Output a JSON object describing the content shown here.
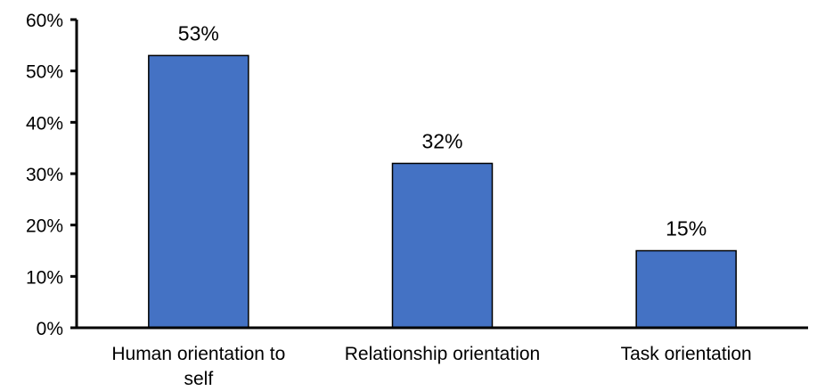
{
  "chart_data": {
    "type": "bar",
    "categories": [
      [
        "Human orientation to",
        "self"
      ],
      [
        "Relationship orientation"
      ],
      [
        "Task orientation"
      ]
    ],
    "values": [
      53,
      32,
      15
    ],
    "data_labels": [
      "53%",
      "32%",
      "15%"
    ],
    "ylim": [
      0,
      60
    ],
    "yticks": [
      0,
      10,
      20,
      30,
      40,
      50,
      60
    ],
    "ytick_labels": [
      "0%",
      "10%",
      "20%",
      "30%",
      "40%",
      "50%",
      "60%"
    ],
    "title": "",
    "xlabel": "",
    "ylabel": "",
    "grid": false,
    "legend": "none",
    "bar_color": "#4472c4",
    "bar_edge_color": "#000000"
  }
}
